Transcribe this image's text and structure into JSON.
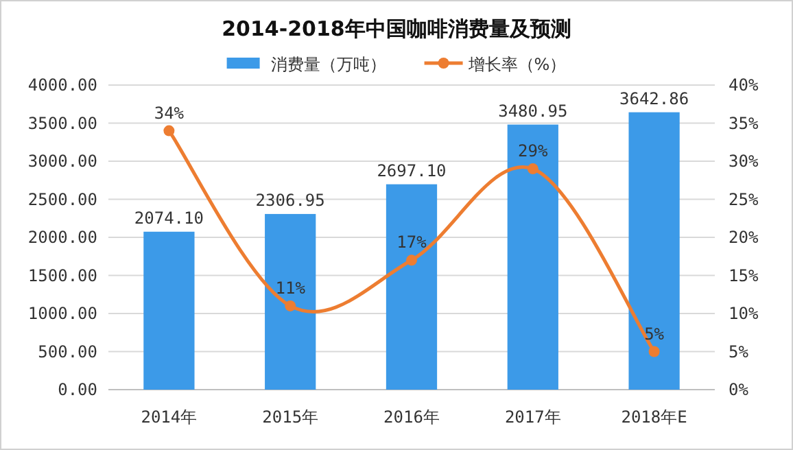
{
  "chart_data": {
    "type": "bar",
    "title": "2014-2018年中国咖啡消费量及预测",
    "categories": [
      "2014年",
      "2015年",
      "2016年",
      "2017年",
      "2018年E"
    ],
    "series": [
      {
        "name": "消费量（万吨）",
        "color": "#3c9ae8",
        "values": [
          2074.1,
          2306.95,
          2697.1,
          3480.95,
          3642.86
        ],
        "value_labels": [
          "2074.10",
          "2306.95",
          "2697.10",
          "3480.95",
          "3642.86"
        ]
      },
      {
        "name": "增长率（%）",
        "type": "line",
        "axis": "y2",
        "color": "#ed7d31",
        "marker": "circle",
        "values": [
          34,
          11,
          17,
          29,
          5
        ],
        "value_labels": [
          "34%",
          "11%",
          "17%",
          "29%",
          "5%"
        ]
      }
    ],
    "ylim": [
      0,
      4000
    ],
    "yticks": [
      {
        "value": 0,
        "label": "0.00"
      },
      {
        "value": 500,
        "label": "500.00"
      },
      {
        "value": 1000,
        "label": "1000.00"
      },
      {
        "value": 1500,
        "label": "1500.00"
      },
      {
        "value": 2000,
        "label": "2000.00"
      },
      {
        "value": 2500,
        "label": "2500.00"
      },
      {
        "value": 3000,
        "label": "3000.00"
      },
      {
        "value": 3500,
        "label": "3500.00"
      },
      {
        "value": 4000,
        "label": "4000.00"
      }
    ],
    "y2lim": [
      0,
      40
    ],
    "y2ticks": [
      {
        "value": 0,
        "label": "0%"
      },
      {
        "value": 5,
        "label": "5%"
      },
      {
        "value": 10,
        "label": "10%"
      },
      {
        "value": 15,
        "label": "15%"
      },
      {
        "value": 20,
        "label": "20%"
      },
      {
        "value": 25,
        "label": "25%"
      },
      {
        "value": 30,
        "label": "30%"
      },
      {
        "value": 35,
        "label": "35%"
      },
      {
        "value": 40,
        "label": "40%"
      }
    ],
    "grid": "y",
    "legend": "top"
  }
}
